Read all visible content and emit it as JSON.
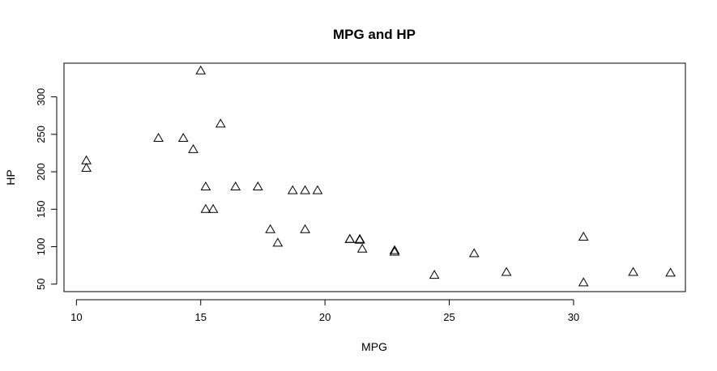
{
  "chart_data": {
    "type": "scatter",
    "title": "MPG and HP",
    "xlabel": "MPG",
    "ylabel": "HP",
    "xlim": [
      9.5,
      34.5
    ],
    "ylim": [
      40,
      345
    ],
    "xticks": [
      10,
      15,
      20,
      25,
      30
    ],
    "yticks": [
      50,
      100,
      150,
      200,
      250,
      300
    ],
    "marker": "open-triangle",
    "grid": false,
    "series": [
      {
        "x": [
          21.0,
          21.0,
          22.8,
          21.4,
          18.7,
          18.1,
          14.3,
          24.4,
          22.8,
          19.2,
          17.8,
          16.4,
          17.3,
          15.2,
          10.4,
          10.4,
          14.7,
          32.4,
          30.4,
          33.9,
          21.5,
          15.5,
          15.2,
          13.3,
          19.2,
          27.3,
          26.0,
          30.4,
          15.8,
          19.7,
          15.0,
          21.4
        ],
        "y": [
          110,
          110,
          93,
          110,
          175,
          105,
          245,
          62,
          95,
          123,
          123,
          180,
          180,
          180,
          205,
          215,
          230,
          66,
          52,
          65,
          97,
          150,
          150,
          245,
          175,
          66,
          91,
          113,
          264,
          175,
          335,
          109
        ]
      }
    ]
  }
}
